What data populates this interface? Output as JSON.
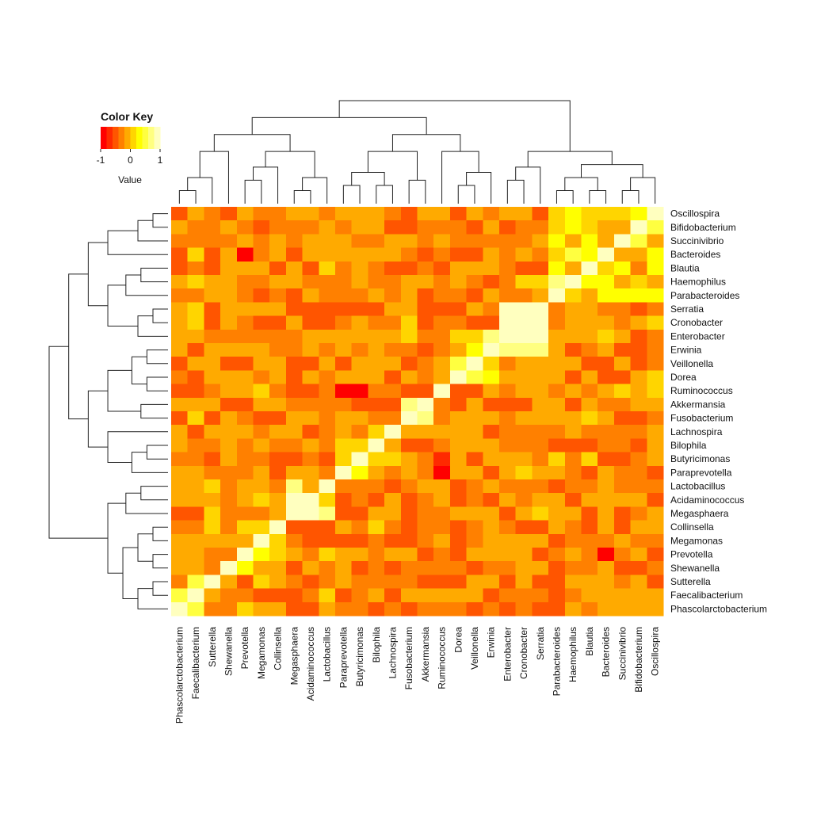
{
  "chart_data": {
    "type": "heatmap",
    "title": "",
    "xlabel": "",
    "ylabel": "",
    "color_key": {
      "title": "Color Key",
      "axis_label": "Value",
      "ticks": [
        "-1",
        "0",
        "1"
      ],
      "range": [
        -1,
        1
      ],
      "palette": [
        "#FF0000",
        "#FF2A00",
        "#FF5500",
        "#FF8000",
        "#FFAA00",
        "#FFD500",
        "#FFFF00",
        "#FFFF40",
        "#FFFF80",
        "#FFFFBF"
      ]
    },
    "columns": [
      "Phascolarctobacterium",
      "Faecalibacterium",
      "Sutterella",
      "Shewanella",
      "Prevotella",
      "Megamonas",
      "Collinsella",
      "Megasphaera",
      "Acidaminococcus",
      "Lactobacillus",
      "Paraprevotella",
      "Butyricimonas",
      "Bilophila",
      "Lachnospira",
      "Fusobacterium",
      "Akkermansia",
      "Ruminococcus",
      "Dorea",
      "Veillonella",
      "Erwinia",
      "Enterobacter",
      "Cronobacter",
      "Serratia",
      "Parabacteroides",
      "Haemophilus",
      "Blautia",
      "Bacteroides",
      "Succinivibrio",
      "Bifidobacterium",
      "Oscillospira"
    ],
    "rows": [
      "Oscillospira",
      "Bifidobacterium",
      "Succinivibrio",
      "Bacteroides",
      "Blautia",
      "Haemophilus",
      "Parabacteroides",
      "Serratia",
      "Cronobacter",
      "Enterobacter",
      "Erwinia",
      "Veillonella",
      "Dorea",
      "Ruminococcus",
      "Akkermansia",
      "Fusobacterium",
      "Lachnospira",
      "Bilophila",
      "Butyricimonas",
      "Paraprevotella",
      "Lactobacillus",
      "Acidaminococcus",
      "Megasphaera",
      "Collinsella",
      "Megamonas",
      "Prevotella",
      "Shewanella",
      "Sutterella",
      "Faecalibacterium",
      "Phascolarctobacterium"
    ],
    "groups": [
      [
        0,
        1,
        2
      ],
      [
        3
      ],
      [
        4,
        5,
        6
      ],
      [
        7,
        8,
        9
      ],
      [
        10,
        11,
        12,
        13
      ],
      [
        14,
        15
      ],
      [
        16
      ],
      [
        17,
        18,
        19
      ],
      [
        20,
        21,
        22
      ],
      [
        23,
        24,
        25,
        26,
        27,
        28,
        29
      ]
    ],
    "overrides": [
      {
        "row": "Ruminococcus",
        "col": "Paraprevotella",
        "value": -0.95
      },
      {
        "row": "Ruminococcus",
        "col": "Butyricimonas",
        "value": -0.8
      },
      {
        "row": "Bacteroides",
        "col": "Prevotella",
        "value": -0.9
      },
      {
        "row": "Prevotella",
        "col": "Bacteroides",
        "value": -0.9
      },
      {
        "row": "Paraprevotella",
        "col": "Ruminococcus",
        "value": -0.95
      },
      {
        "row": "Butyricimonas",
        "col": "Ruminococcus",
        "value": -0.75
      },
      {
        "row": "Serratia",
        "col": "Cronobacter",
        "value": 0.95
      },
      {
        "row": "Cronobacter",
        "col": "Serratia",
        "value": 0.95
      },
      {
        "row": "Enterobacter",
        "col": "Serratia",
        "value": 0.9
      },
      {
        "row": "Serratia",
        "col": "Enterobacter",
        "value": 0.9
      },
      {
        "row": "Enterobacter",
        "col": "Cronobacter",
        "value": 0.9
      },
      {
        "row": "Cronobacter",
        "col": "Enterobacter",
        "value": 0.9
      },
      {
        "row": "Erwinia",
        "col": "Enterobacter",
        "value": 0.75
      },
      {
        "row": "Enterobacter",
        "col": "Erwinia",
        "value": 0.75
      },
      {
        "row": "Erwinia",
        "col": "Cronobacter",
        "value": 0.7
      },
      {
        "row": "Erwinia",
        "col": "Serratia",
        "value": 0.7
      },
      {
        "row": "Veillonella",
        "col": "Dorea",
        "value": 0.55
      },
      {
        "row": "Dorea",
        "col": "Veillonella",
        "value": 0.55
      },
      {
        "row": "Megasphaera",
        "col": "Acidaminococcus",
        "value": 0.8
      },
      {
        "row": "Acidaminococcus",
        "col": "Megasphaera",
        "value": 0.8
      },
      {
        "row": "Lactobacillus",
        "col": "Megasphaera",
        "value": 0.6
      },
      {
        "row": "Megasphaera",
        "col": "Lactobacillus",
        "value": 0.6
      },
      {
        "row": "Haemophilus",
        "col": "Parabacteroides",
        "value": 0.6
      },
      {
        "row": "Bacteroides",
        "col": "Haemophilus",
        "value": 0.55
      },
      {
        "row": "Fusobacterium",
        "col": "Akkermansia",
        "value": 0.6
      },
      {
        "row": "Akkermansia",
        "col": "Fusobacterium",
        "value": 0.6
      },
      {
        "row": "Sutterella",
        "col": "Faecalibacterium",
        "value": 0.5
      },
      {
        "row": "Faecalibacterium",
        "col": "Phascolarctobacterium",
        "value": 0.55
      },
      {
        "row": "Phascolarctobacterium",
        "col": "Faecalibacterium",
        "value": 0.55
      },
      {
        "row": "Shewanella",
        "col": "Prevotella",
        "value": 0.3
      },
      {
        "row": "Bifidobacterium",
        "col": "Oscillospira",
        "value": 0.5
      },
      {
        "row": "Succinivibrio",
        "col": "Bifidobacterium",
        "value": 0.45
      },
      {
        "row": "Dorea",
        "col": "Faecalibacterium",
        "value": -0.55
      },
      {
        "row": "Megamonas",
        "col": "Dorea",
        "value": -0.5
      },
      {
        "row": "Prevotella",
        "col": "Dorea",
        "value": -0.55
      },
      {
        "row": "Fusobacterium",
        "col": "Succinivibrio",
        "value": -0.6
      },
      {
        "row": "Fusobacterium",
        "col": "Bifidobacterium",
        "value": -0.55
      },
      {
        "row": "Oscillospira",
        "col": "Fusobacterium",
        "value": -0.55
      },
      {
        "row": "Bifidobacterium",
        "col": "Fusobacterium",
        "value": -0.6
      },
      {
        "row": "Sutterella",
        "col": "Ruminococcus",
        "value": -0.5
      },
      {
        "row": "Phascolarctobacterium",
        "col": "Megasphaera",
        "value": -0.5
      },
      {
        "row": "Phascolarctobacterium",
        "col": "Acidaminococcus",
        "value": -0.5
      }
    ]
  }
}
